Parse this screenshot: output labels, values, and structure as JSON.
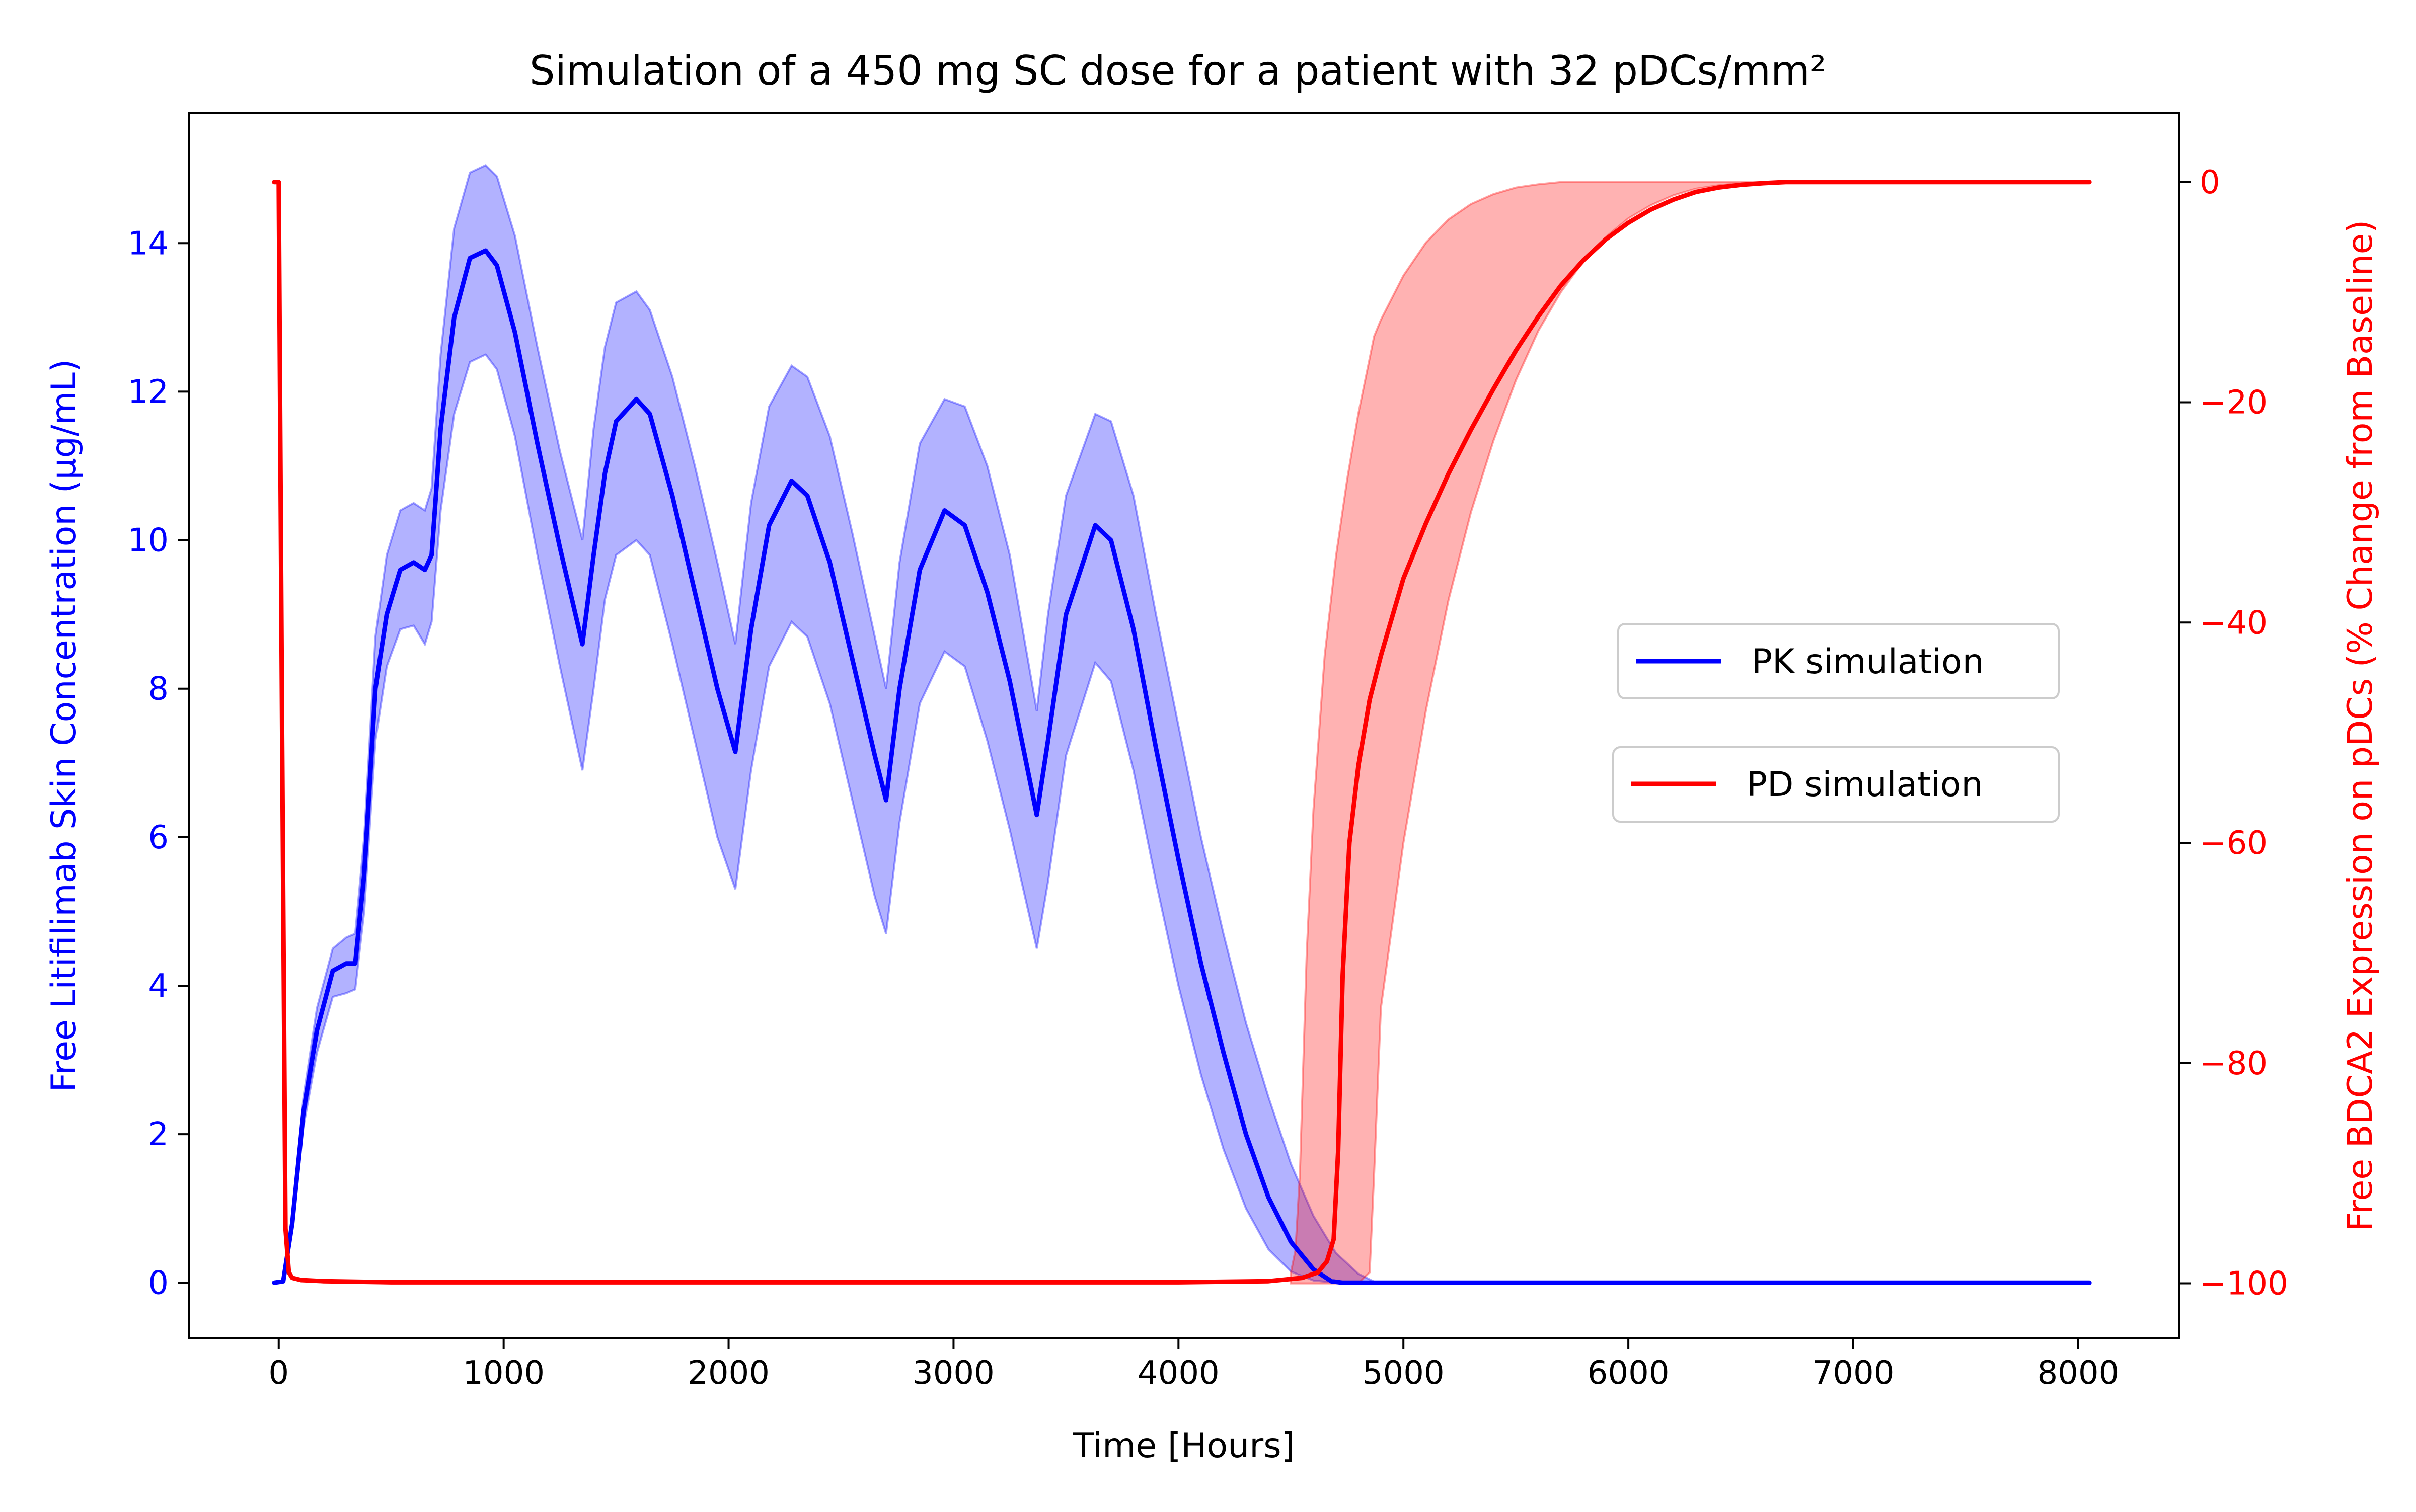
{
  "chart_data": {
    "type": "line",
    "title": "Simulation of a 450 mg SC dose for a patient with 32 pDCs/mm²",
    "xlabel": "Time [Hours]",
    "ylabel_left": "Free Litifilimab Skin Concentration (μg/mL)",
    "ylabel_right": "Free BDCA2 Expression on pDCs (% Change from Baseline)",
    "xlim": [
      -400,
      8450
    ],
    "ylim_left": [
      -0.75,
      15.75
    ],
    "ylim_right": [
      -105,
      6.25
    ],
    "xticks": [
      0,
      1000,
      2000,
      3000,
      4000,
      5000,
      6000,
      7000,
      8000
    ],
    "yticks_left": [
      0,
      2,
      4,
      6,
      8,
      10,
      12,
      14
    ],
    "yticks_right": [
      0,
      -20,
      -40,
      -60,
      -80,
      -100
    ],
    "xtick_labels": [
      "0",
      "1000",
      "2000",
      "3000",
      "4000",
      "5000",
      "6000",
      "7000",
      "8000"
    ],
    "ytick_labels_left": [
      "0",
      "2",
      "4",
      "6",
      "8",
      "10",
      "12",
      "14"
    ],
    "ytick_labels_right": [
      "0",
      "−20",
      "−40",
      "−60",
      "−80",
      "−100"
    ],
    "grid": false,
    "colors": {
      "pk": "#0000ff",
      "pd": "#ff0000",
      "pk_band": "#0000ff",
      "pd_band": "#ff0000"
    },
    "series": [
      {
        "name": "PK simulation",
        "axis": "left",
        "color": "#0000ff",
        "x": [
          -20,
          20,
          60,
          110,
          170,
          240,
          300,
          340,
          380,
          430,
          480,
          540,
          600,
          650,
          680,
          720,
          780,
          850,
          920,
          970,
          1050,
          1150,
          1250,
          1350,
          1400,
          1450,
          1500,
          1590,
          1650,
          1750,
          1850,
          1950,
          2030,
          2100,
          2180,
          2280,
          2350,
          2450,
          2550,
          2650,
          2700,
          2760,
          2850,
          2960,
          3050,
          3150,
          3250,
          3370,
          3420,
          3500,
          3630,
          3700,
          3800,
          3900,
          4000,
          4100,
          4200,
          4300,
          4400,
          4500,
          4600,
          4680,
          4730,
          4800,
          5000,
          6000,
          7000,
          8050
        ],
        "y": [
          0,
          0.02,
          0.8,
          2.3,
          3.4,
          4.2,
          4.3,
          4.3,
          5.5,
          8.0,
          9.0,
          9.6,
          9.7,
          9.6,
          9.8,
          11.5,
          13.0,
          13.8,
          13.9,
          13.7,
          12.8,
          11.3,
          9.9,
          8.6,
          9.8,
          10.9,
          11.6,
          11.9,
          11.7,
          10.6,
          9.3,
          8.0,
          7.15,
          8.8,
          10.2,
          10.8,
          10.6,
          9.7,
          8.4,
          7.1,
          6.5,
          8.0,
          9.6,
          10.4,
          10.2,
          9.3,
          8.1,
          6.3,
          7.3,
          9.0,
          10.2,
          10.0,
          8.8,
          7.2,
          5.7,
          4.3,
          3.1,
          2.0,
          1.15,
          0.55,
          0.18,
          0.02,
          0,
          0,
          0,
          0,
          0,
          0
        ]
      },
      {
        "name": "PD simulation",
        "axis": "right",
        "color": "#ff0000",
        "x": [
          -20,
          0,
          15,
          30,
          45,
          60,
          100,
          200,
          500,
          1000,
          2000,
          3000,
          4000,
          4400,
          4550,
          4620,
          4660,
          4690,
          4710,
          4730,
          4760,
          4800,
          4850,
          4900,
          5000,
          5100,
          5200,
          5300,
          5400,
          5500,
          5600,
          5700,
          5800,
          5900,
          6000,
          6100,
          6200,
          6300,
          6400,
          6500,
          6600,
          6700,
          7000,
          7500,
          8050
        ],
        "y": [
          0,
          0,
          -50,
          -95,
          -99,
          -99.5,
          -99.7,
          -99.8,
          -99.9,
          -99.9,
          -99.9,
          -99.9,
          -99.9,
          -99.8,
          -99.5,
          -99,
          -98,
          -96,
          -88,
          -72,
          -60,
          -53,
          -47,
          -43,
          -36,
          -31,
          -26.5,
          -22.5,
          -18.8,
          -15.3,
          -12.2,
          -9.4,
          -7.1,
          -5.2,
          -3.7,
          -2.5,
          -1.6,
          -0.9,
          -0.5,
          -0.25,
          -0.1,
          0,
          0,
          0,
          0
        ]
      }
    ],
    "bands": [
      {
        "series": "PK simulation",
        "axis": "left",
        "x": [
          -20,
          20,
          60,
          110,
          170,
          240,
          300,
          340,
          380,
          430,
          480,
          540,
          600,
          650,
          680,
          720,
          780,
          850,
          920,
          970,
          1050,
          1150,
          1250,
          1350,
          1400,
          1450,
          1500,
          1590,
          1650,
          1750,
          1850,
          1950,
          2030,
          2100,
          2180,
          2280,
          2350,
          2450,
          2550,
          2650,
          2700,
          2760,
          2850,
          2960,
          3050,
          3150,
          3250,
          3370,
          3420,
          3500,
          3630,
          3700,
          3800,
          3900,
          4000,
          4100,
          4200,
          4300,
          4400,
          4500,
          4600,
          4700,
          4800,
          4880,
          5000,
          8050
        ],
        "lower": [
          0,
          0.02,
          0.7,
          2.1,
          3.1,
          3.85,
          3.9,
          3.95,
          5.0,
          7.3,
          8.3,
          8.8,
          8.85,
          8.6,
          8.9,
          10.4,
          11.7,
          12.4,
          12.5,
          12.3,
          11.4,
          9.8,
          8.3,
          6.9,
          8.0,
          9.2,
          9.8,
          10.0,
          9.8,
          8.6,
          7.3,
          6.0,
          5.3,
          6.9,
          8.3,
          8.9,
          8.7,
          7.8,
          6.5,
          5.2,
          4.7,
          6.2,
          7.8,
          8.5,
          8.3,
          7.3,
          6.1,
          4.5,
          5.4,
          7.1,
          8.35,
          8.1,
          6.9,
          5.4,
          4.0,
          2.8,
          1.8,
          1.0,
          0.45,
          0.15,
          0.03,
          0,
          0,
          0,
          0,
          0
        ],
        "upper": [
          0,
          0.02,
          0.9,
          2.5,
          3.7,
          4.5,
          4.65,
          4.7,
          6.0,
          8.7,
          9.8,
          10.4,
          10.5,
          10.4,
          10.7,
          12.5,
          14.2,
          14.95,
          15.05,
          14.9,
          14.1,
          12.6,
          11.2,
          10.0,
          11.5,
          12.6,
          13.2,
          13.35,
          13.1,
          12.2,
          11.0,
          9.7,
          8.6,
          10.5,
          11.8,
          12.35,
          12.2,
          11.4,
          10.1,
          8.7,
          8.0,
          9.7,
          11.3,
          11.9,
          11.8,
          11.0,
          9.8,
          7.7,
          9.0,
          10.6,
          11.7,
          11.6,
          10.6,
          9.0,
          7.5,
          6.0,
          4.7,
          3.5,
          2.5,
          1.6,
          0.9,
          0.4,
          0.12,
          0,
          0,
          0
        ]
      },
      {
        "series": "PD simulation",
        "axis": "right",
        "x": [
          4500,
          4520,
          4540,
          4570,
          4600,
          4650,
          4700,
          4750,
          4800,
          4850,
          4870,
          4900,
          5000,
          5100,
          5200,
          5300,
          5400,
          5500,
          5600,
          5700,
          5800,
          5900,
          6000,
          6100,
          6200,
          6300,
          6400,
          6500,
          6600,
          6700,
          7000,
          8050
        ],
        "lower": [
          -100,
          -100,
          -100,
          -100,
          -100,
          -100,
          -100,
          -100,
          -100,
          -99,
          -90,
          -75,
          -60,
          -48,
          -38,
          -30,
          -23.5,
          -18,
          -13.5,
          -10,
          -7.2,
          -5,
          -3.3,
          -2.1,
          -1.2,
          -0.6,
          -0.3,
          -0.1,
          0,
          0,
          0,
          0
        ],
        "upper": [
          -99,
          -97,
          -90,
          -70,
          -57,
          -43,
          -34,
          -27,
          -21,
          -16,
          -14,
          -12.5,
          -8.5,
          -5.5,
          -3.4,
          -2,
          -1.1,
          -0.5,
          -0.2,
          0,
          0,
          0,
          0,
          0,
          0,
          0,
          0,
          0,
          0,
          0,
          0,
          0
        ]
      }
    ],
    "legend": {
      "placement": "center-right",
      "entries": [
        "PK simulation",
        "PD simulation"
      ]
    }
  }
}
